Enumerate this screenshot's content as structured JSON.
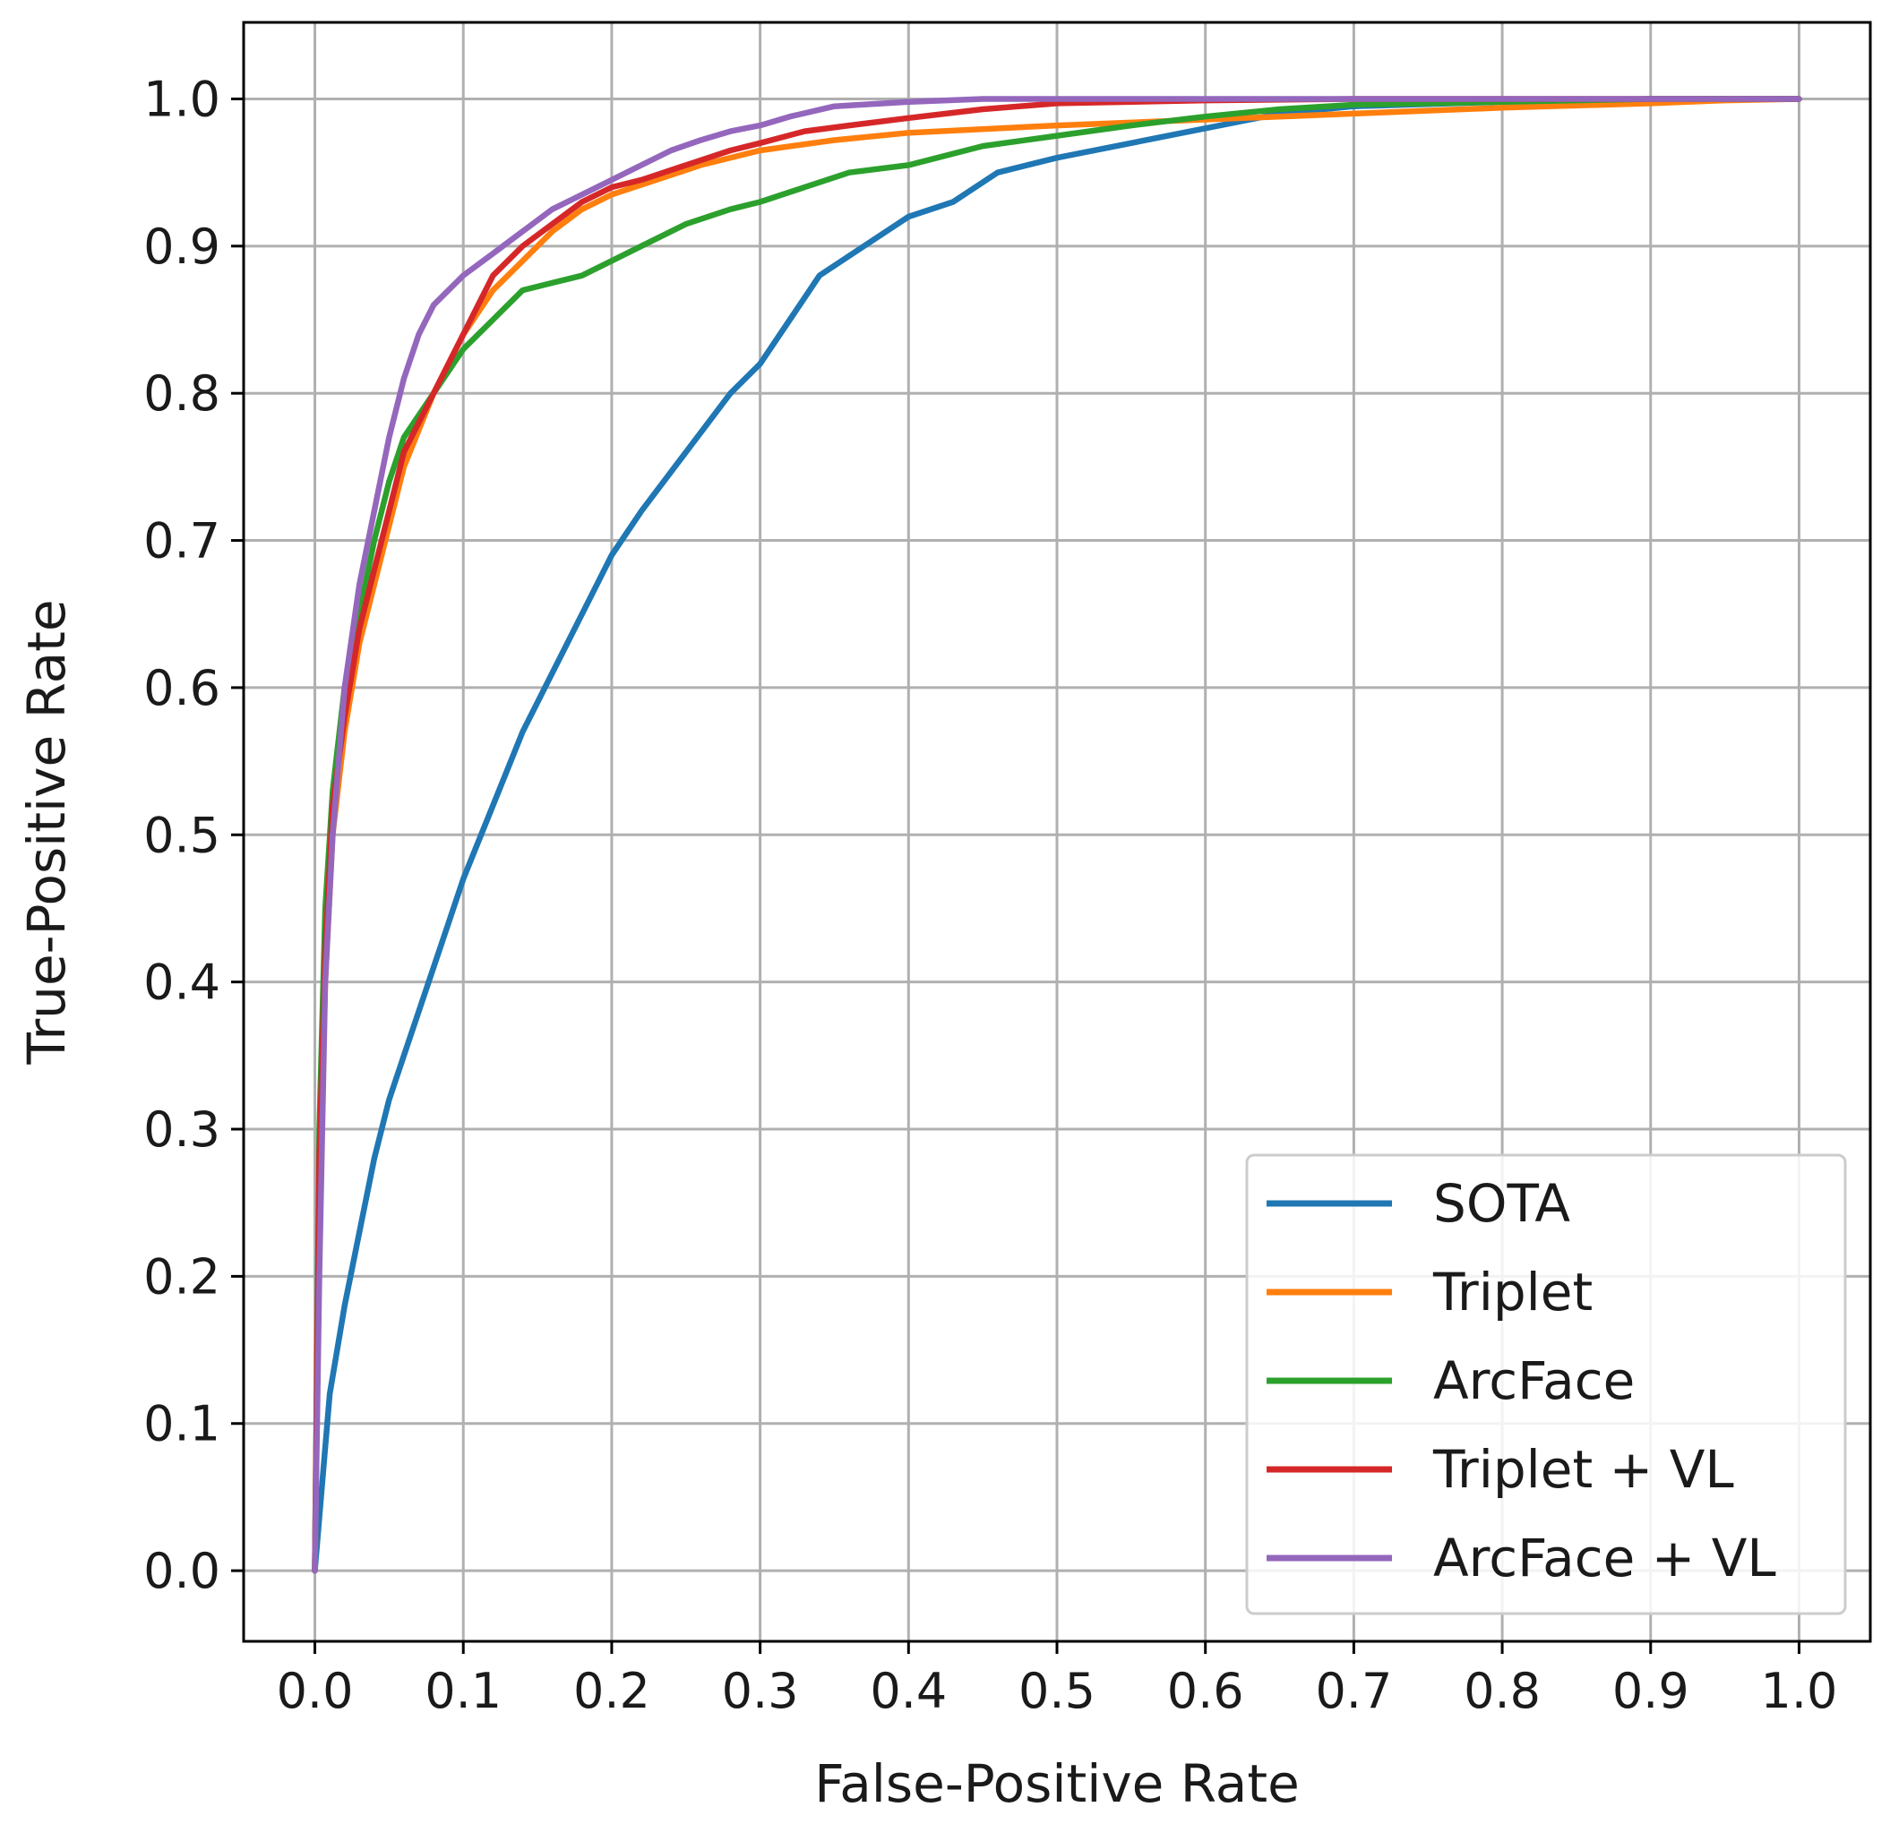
{
  "chart_data": {
    "type": "line",
    "title": "",
    "xlabel": "False-Positive Rate",
    "ylabel": "True-Positive Rate",
    "xlim": [
      -0.048,
      1.048
    ],
    "ylim": [
      -0.048,
      1.052
    ],
    "grid": true,
    "legend_position": "lower-right",
    "xticks": [
      0.0,
      0.1,
      0.2,
      0.3,
      0.4,
      0.5,
      0.6,
      0.7,
      0.8,
      0.9,
      1.0
    ],
    "yticks": [
      0.0,
      0.1,
      0.2,
      0.3,
      0.4,
      0.5,
      0.6,
      0.7,
      0.8,
      0.9,
      1.0
    ],
    "xtick_labels": [
      "0.0",
      "0.1",
      "0.2",
      "0.3",
      "0.4",
      "0.5",
      "0.6",
      "0.7",
      "0.8",
      "0.9",
      "1.0"
    ],
    "ytick_labels": [
      "0.0",
      "0.1",
      "0.2",
      "0.3",
      "0.4",
      "0.5",
      "0.6",
      "0.7",
      "0.8",
      "0.9",
      "1.0"
    ],
    "series": [
      {
        "name": "SOTA",
        "color": "#1f77b4",
        "x": [
          0.0,
          0.005,
          0.01,
          0.02,
          0.03,
          0.04,
          0.05,
          0.06,
          0.07,
          0.08,
          0.09,
          0.1,
          0.12,
          0.14,
          0.16,
          0.18,
          0.2,
          0.22,
          0.25,
          0.28,
          0.3,
          0.32,
          0.34,
          0.37,
          0.4,
          0.43,
          0.46,
          0.5,
          0.55,
          0.6,
          0.65,
          0.7,
          0.8,
          0.9,
          1.0
        ],
        "y": [
          0.0,
          0.06,
          0.12,
          0.18,
          0.23,
          0.28,
          0.32,
          0.35,
          0.38,
          0.41,
          0.44,
          0.47,
          0.52,
          0.57,
          0.61,
          0.65,
          0.69,
          0.72,
          0.76,
          0.8,
          0.82,
          0.85,
          0.88,
          0.9,
          0.92,
          0.93,
          0.95,
          0.96,
          0.97,
          0.98,
          0.99,
          0.995,
          0.998,
          1.0,
          1.0
        ]
      },
      {
        "name": "Triplet",
        "color": "#ff7f0e",
        "x": [
          0.0,
          0.003,
          0.007,
          0.012,
          0.02,
          0.03,
          0.04,
          0.05,
          0.06,
          0.08,
          0.1,
          0.12,
          0.14,
          0.16,
          0.18,
          0.2,
          0.23,
          0.26,
          0.3,
          0.35,
          0.4,
          0.5,
          0.6,
          0.7,
          0.8,
          0.9,
          0.95,
          1.0
        ],
        "y": [
          0.0,
          0.25,
          0.4,
          0.5,
          0.57,
          0.63,
          0.67,
          0.71,
          0.75,
          0.8,
          0.84,
          0.87,
          0.89,
          0.91,
          0.925,
          0.935,
          0.945,
          0.955,
          0.965,
          0.972,
          0.977,
          0.982,
          0.986,
          0.99,
          0.994,
          0.997,
          0.999,
          1.0
        ]
      },
      {
        "name": "ArcFace",
        "color": "#2ca02c",
        "x": [
          0.0,
          0.003,
          0.007,
          0.012,
          0.02,
          0.03,
          0.04,
          0.05,
          0.06,
          0.08,
          0.1,
          0.12,
          0.14,
          0.16,
          0.18,
          0.2,
          0.22,
          0.25,
          0.28,
          0.3,
          0.33,
          0.36,
          0.4,
          0.45,
          0.5,
          0.55,
          0.6,
          0.65,
          0.7,
          0.8,
          0.9,
          1.0
        ],
        "y": [
          0.0,
          0.3,
          0.45,
          0.53,
          0.6,
          0.65,
          0.7,
          0.74,
          0.77,
          0.8,
          0.83,
          0.85,
          0.87,
          0.875,
          0.88,
          0.89,
          0.9,
          0.915,
          0.925,
          0.93,
          0.94,
          0.95,
          0.955,
          0.968,
          0.975,
          0.982,
          0.988,
          0.993,
          0.996,
          0.998,
          1.0,
          1.0
        ]
      },
      {
        "name": "Triplet + VL",
        "color": "#d62728",
        "x": [
          0.0,
          0.003,
          0.007,
          0.012,
          0.02,
          0.03,
          0.04,
          0.05,
          0.06,
          0.08,
          0.1,
          0.12,
          0.14,
          0.16,
          0.18,
          0.2,
          0.22,
          0.25,
          0.28,
          0.3,
          0.33,
          0.36,
          0.4,
          0.45,
          0.5,
          0.6,
          0.7,
          0.8,
          0.9,
          1.0
        ],
        "y": [
          0.0,
          0.28,
          0.42,
          0.52,
          0.58,
          0.64,
          0.68,
          0.72,
          0.76,
          0.8,
          0.84,
          0.88,
          0.9,
          0.915,
          0.93,
          0.94,
          0.945,
          0.955,
          0.965,
          0.97,
          0.978,
          0.982,
          0.987,
          0.993,
          0.997,
          0.999,
          1.0,
          1.0,
          1.0,
          1.0
        ]
      },
      {
        "name": "ArcFace + VL",
        "color": "#9467bd",
        "x": [
          0.0,
          0.003,
          0.007,
          0.012,
          0.02,
          0.03,
          0.04,
          0.05,
          0.06,
          0.07,
          0.08,
          0.09,
          0.1,
          0.12,
          0.14,
          0.16,
          0.18,
          0.2,
          0.22,
          0.24,
          0.26,
          0.28,
          0.3,
          0.32,
          0.35,
          0.4,
          0.45,
          0.5,
          0.6,
          0.7,
          0.8,
          0.9,
          1.0
        ],
        "y": [
          0.0,
          0.2,
          0.4,
          0.5,
          0.6,
          0.67,
          0.72,
          0.77,
          0.81,
          0.84,
          0.86,
          0.87,
          0.88,
          0.895,
          0.91,
          0.925,
          0.935,
          0.945,
          0.955,
          0.965,
          0.972,
          0.978,
          0.982,
          0.988,
          0.995,
          0.998,
          1.0,
          1.0,
          1.0,
          1.0,
          1.0,
          1.0,
          1.0
        ]
      }
    ]
  }
}
